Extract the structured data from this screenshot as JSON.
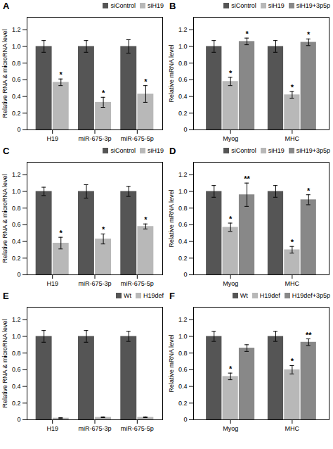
{
  "chart_data": [
    {
      "type": "bar",
      "title": "A",
      "ylabel": "Relative RNA & microRNA level",
      "categories": [
        "H19",
        "miR-675-3p",
        "miR-675-5p"
      ],
      "series": [
        {
          "name": "siControl",
          "color": "#555555",
          "values": [
            1.0,
            1.0,
            1.0
          ],
          "errors": [
            0.07,
            0.07,
            0.08
          ],
          "stars": [
            null,
            null,
            null
          ]
        },
        {
          "name": "siH19",
          "color": "#b8b8b8",
          "values": [
            0.57,
            0.33,
            0.43
          ],
          "errors": [
            0.04,
            0.06,
            0.1
          ],
          "stars": [
            "*",
            "*",
            "*"
          ]
        }
      ],
      "ylim": [
        0,
        1.35
      ],
      "yticks": [
        0,
        0.2,
        0.4,
        0.6,
        0.8,
        {
          "value": 1.0,
          "label": "1.0"
        },
        1.2
      ],
      "legend": "upper right",
      "grid": false
    },
    {
      "type": "bar",
      "title": "B",
      "ylabel": "Relative mRNA level",
      "categories": [
        "Myog",
        "MHC"
      ],
      "series": [
        {
          "name": "siControl",
          "color": "#555555",
          "values": [
            1.0,
            1.0
          ],
          "errors": [
            0.07,
            0.07
          ],
          "stars": [
            null,
            null
          ]
        },
        {
          "name": "siH19",
          "color": "#b8b8b8",
          "values": [
            0.58,
            0.42
          ],
          "errors": [
            0.05,
            0.04
          ],
          "stars": [
            "*",
            "*"
          ]
        },
        {
          "name": "siH19+3p5p",
          "color": "#888888",
          "values": [
            1.06,
            1.05
          ],
          "errors": [
            0.04,
            0.04
          ],
          "stars": [
            "*",
            "*"
          ]
        }
      ],
      "ylim": [
        0,
        1.35
      ],
      "yticks": [
        0,
        0.2,
        0.4,
        0.6,
        0.8,
        {
          "value": 1.0,
          "label": "1.0"
        },
        1.2
      ],
      "legend": "upper right",
      "grid": false
    },
    {
      "type": "bar",
      "title": "C",
      "ylabel": "Relative RNA & microRNA level",
      "categories": [
        "H19",
        "miR-675-3p",
        "miR-675-5p"
      ],
      "series": [
        {
          "name": "siControl",
          "color": "#555555",
          "values": [
            1.0,
            1.0,
            1.0
          ],
          "errors": [
            0.05,
            0.08,
            0.06
          ],
          "stars": [
            null,
            null,
            null
          ]
        },
        {
          "name": "siH19",
          "color": "#b8b8b8",
          "values": [
            0.38,
            0.43,
            0.58
          ],
          "errors": [
            0.07,
            0.06,
            0.03
          ],
          "stars": [
            "*",
            "*",
            "*"
          ]
        }
      ],
      "ylim": [
        0,
        1.35
      ],
      "yticks": [
        0,
        0.2,
        0.4,
        0.6,
        0.8,
        {
          "value": 1.0,
          "label": "1.0"
        },
        1.2
      ],
      "legend": "upper right",
      "grid": false
    },
    {
      "type": "bar",
      "title": "D",
      "ylabel": "Relative mRNA level",
      "categories": [
        "Myog",
        "MHC"
      ],
      "series": [
        {
          "name": "siControl",
          "color": "#555555",
          "values": [
            1.0,
            1.0
          ],
          "errors": [
            0.07,
            0.07
          ],
          "stars": [
            null,
            null
          ]
        },
        {
          "name": "siH19",
          "color": "#b8b8b8",
          "values": [
            0.57,
            0.3
          ],
          "errors": [
            0.05,
            0.04
          ],
          "stars": [
            "*",
            "*"
          ]
        },
        {
          "name": "siH19+3p5p",
          "color": "#888888",
          "values": [
            0.96,
            0.9
          ],
          "errors": [
            0.14,
            0.06
          ],
          "stars": [
            "**",
            "*"
          ]
        }
      ],
      "ylim": [
        0,
        1.35
      ],
      "yticks": [
        0,
        0.2,
        0.4,
        0.6,
        0.8,
        {
          "value": 1.0,
          "label": "1.0"
        },
        1.2
      ],
      "legend": "upper right",
      "grid": false
    },
    {
      "type": "bar",
      "title": "E",
      "ylabel": "Relative RNA & microRNA level",
      "categories": [
        "H19",
        "miR-675-3p",
        "miR-675-5p"
      ],
      "series": [
        {
          "name": "Wt",
          "color": "#555555",
          "values": [
            1.0,
            1.0,
            1.0
          ],
          "errors": [
            0.07,
            0.07,
            0.06
          ],
          "stars": [
            null,
            null,
            null
          ]
        },
        {
          "name": "H19def",
          "color": "#b8b8b8",
          "values": [
            0.02,
            0.03,
            0.03
          ],
          "errors": [
            0.005,
            0.005,
            0.005
          ],
          "stars": [
            null,
            null,
            null
          ]
        }
      ],
      "ylim": [
        0,
        1.35
      ],
      "yticks": [
        0,
        0.2,
        0.4,
        0.6,
        0.8,
        {
          "value": 1.0,
          "label": "1.0"
        },
        1.2
      ],
      "legend": "upper right",
      "grid": false
    },
    {
      "type": "bar",
      "title": "F",
      "ylabel": "Relative mRNA level",
      "categories": [
        "Myog",
        "MHC"
      ],
      "series": [
        {
          "name": "Wt",
          "color": "#555555",
          "values": [
            1.0,
            1.0
          ],
          "errors": [
            0.06,
            0.06
          ],
          "stars": [
            null,
            null
          ]
        },
        {
          "name": "H19def",
          "color": "#b8b8b8",
          "values": [
            0.52,
            0.6
          ],
          "errors": [
            0.04,
            0.05
          ],
          "stars": [
            "*",
            "*"
          ]
        },
        {
          "name": "H19def+3p5p",
          "color": "#888888",
          "values": [
            0.86,
            0.93
          ],
          "errors": [
            0.04,
            0.04
          ],
          "stars": [
            null,
            "**"
          ]
        }
      ],
      "ylim": [
        0,
        1.35
      ],
      "yticks": [
        0,
        0.2,
        0.4,
        0.6,
        0.8,
        {
          "value": 1.0,
          "label": "1.0"
        },
        1.2
      ],
      "legend": "upper right",
      "grid": false
    }
  ]
}
